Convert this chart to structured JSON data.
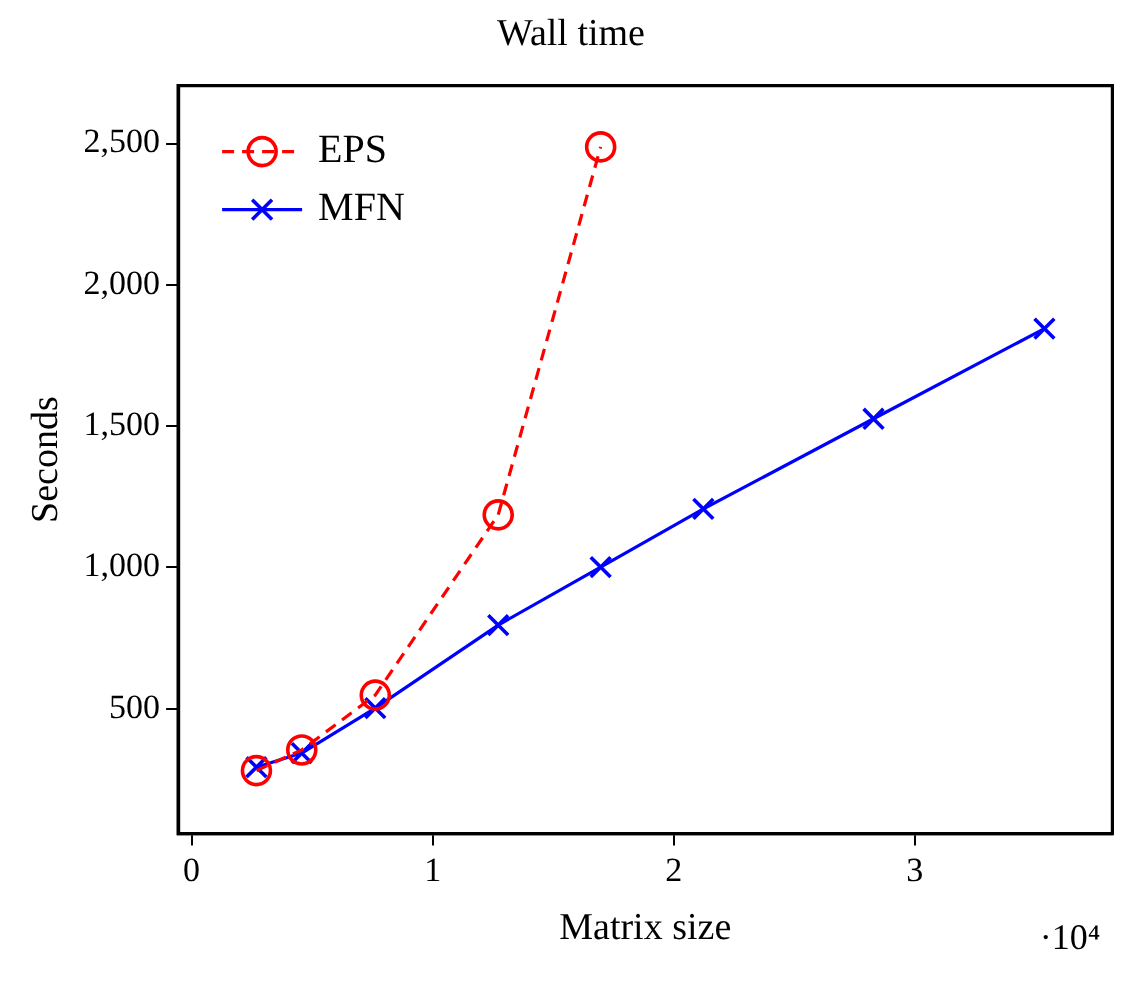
{
  "chart_data": {
    "type": "line",
    "title": "Wall time",
    "xlabel": "Matrix size",
    "ylabel": "Seconds",
    "annotations": [
      "·10⁴"
    ],
    "xlim": [
      -0.056,
      3.82
    ],
    "xticks": [
      0,
      1,
      2,
      3
    ],
    "ylim": [
      58,
      2705
    ],
    "yticks": [
      {
        "value": 500,
        "label": "500"
      },
      {
        "value": 1000,
        "label": "1,000"
      },
      {
        "value": 1500,
        "label": "1,500"
      },
      {
        "value": 2000,
        "label": "2,000"
      },
      {
        "value": 2500,
        "label": "2,500"
      }
    ],
    "grid": false,
    "legend": "top left",
    "series": [
      {
        "name": "EPS",
        "color": "#ff0000",
        "marker": "circle",
        "line_style": "dashed",
        "x": [
          0.269,
          0.457,
          0.762,
          1.272,
          1.697
        ],
        "values": [
          281,
          354,
          548,
          1186,
          2488
        ]
      },
      {
        "name": "MFN",
        "color": "#0000ff",
        "marker": "cross",
        "line_style": "solid",
        "x": [
          0.269,
          0.457,
          0.762,
          1.272,
          1.697,
          2.123,
          2.829,
          3.538
        ],
        "values": [
          293,
          343,
          502,
          796,
          1001,
          1207,
          1526,
          1845
        ]
      }
    ]
  }
}
